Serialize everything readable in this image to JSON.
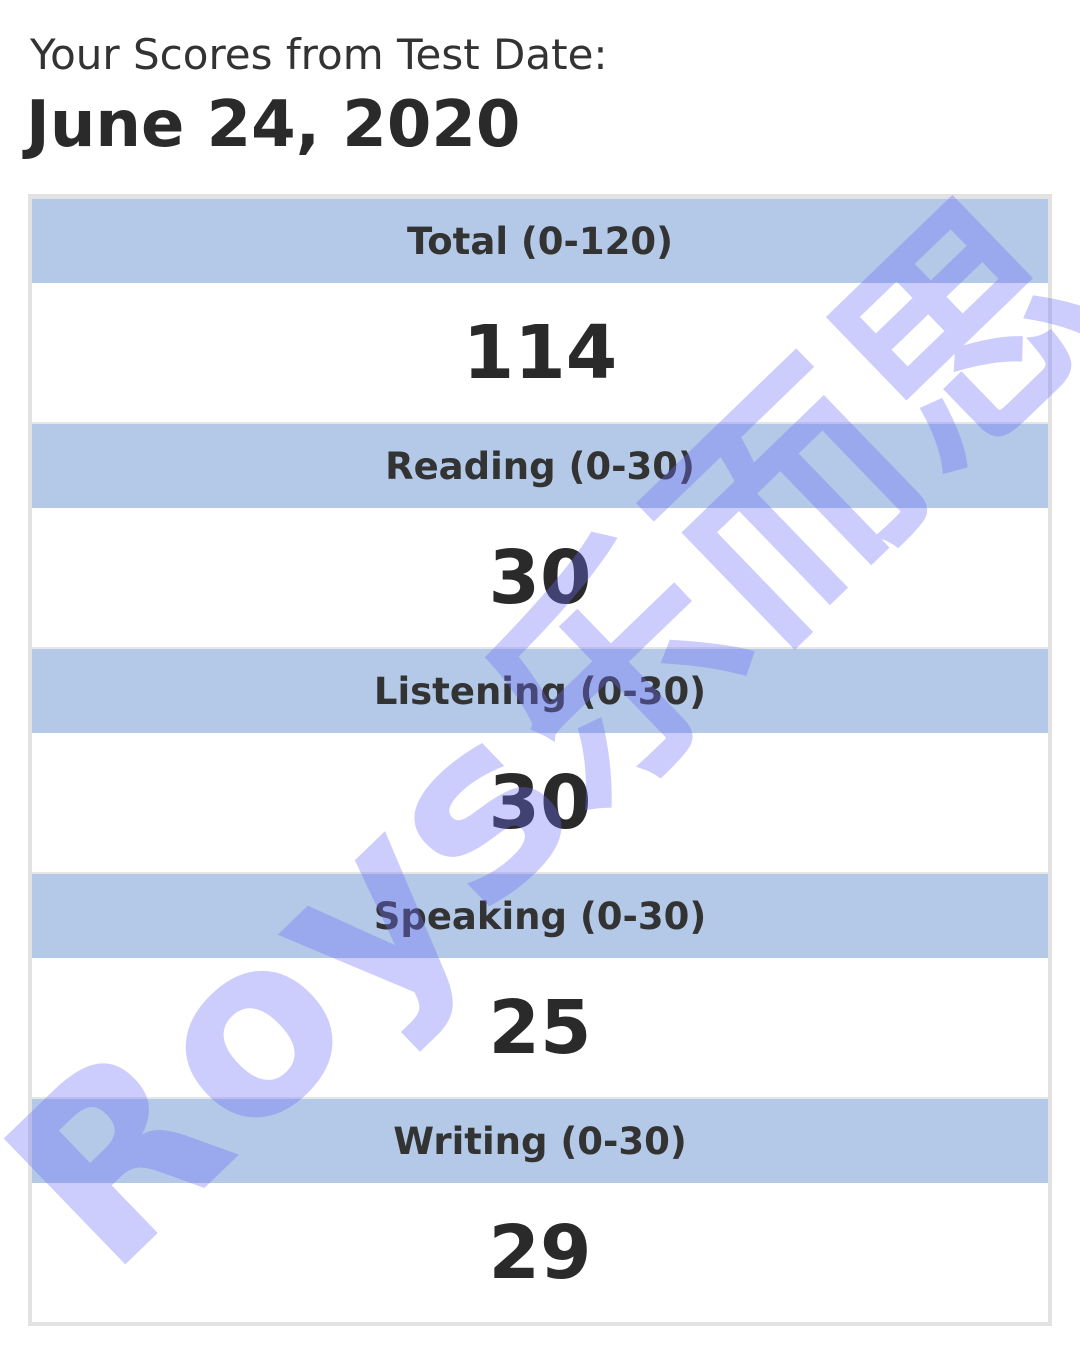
{
  "header": {
    "subtitle": "Your Scores from Test Date:",
    "date": "June 24, 2020"
  },
  "scores": [
    {
      "label": "Total (0-120)",
      "value": "114"
    },
    {
      "label": "Reading (0-30)",
      "value": "30"
    },
    {
      "label": "Listening (0-30)",
      "value": "30"
    },
    {
      "label": "Speaking (0-30)",
      "value": "25"
    },
    {
      "label": "Writing (0-30)",
      "value": "29"
    }
  ],
  "watermark": "Roys乐而思",
  "colors": {
    "header_bg": "#b3c9e7",
    "border": "#e2e2e2",
    "watermark": "#6e6efa"
  }
}
